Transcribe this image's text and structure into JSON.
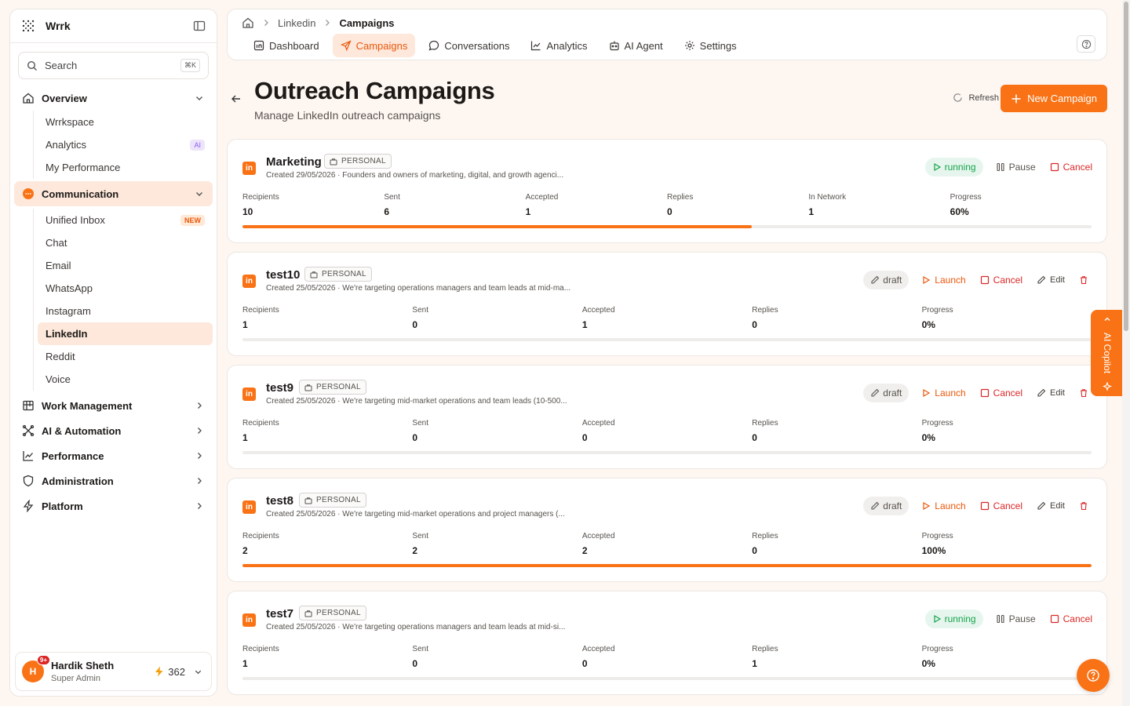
{
  "sidebar": {
    "brand": "Wrrk",
    "search_placeholder": "Search",
    "search_shortcut": "⌘K",
    "overview_label": "Overview",
    "overview_items": [
      {
        "label": "Wrrkspace",
        "badge": ""
      },
      {
        "label": "Analytics",
        "badge": "AI"
      },
      {
        "label": "My Performance",
        "badge": ""
      }
    ],
    "communication_label": "Communication",
    "communication_items": [
      {
        "label": "Unified Inbox",
        "badge": "NEW"
      },
      {
        "label": "Chat",
        "badge": ""
      },
      {
        "label": "Email",
        "badge": ""
      },
      {
        "label": "WhatsApp",
        "badge": ""
      },
      {
        "label": "Instagram",
        "badge": ""
      },
      {
        "label": "LinkedIn",
        "badge": ""
      },
      {
        "label": "Reddit",
        "badge": ""
      },
      {
        "label": "Voice",
        "badge": ""
      }
    ],
    "sections": [
      {
        "label": "Work Management",
        "icon": "kanban-icon"
      },
      {
        "label": "AI & Automation",
        "icon": "automation-icon"
      },
      {
        "label": "Performance",
        "icon": "chart-line-icon"
      },
      {
        "label": "Administration",
        "icon": "shield-icon"
      },
      {
        "label": "Platform",
        "icon": "bolt-icon"
      }
    ],
    "user": {
      "initial": "H",
      "notifications": "9+",
      "name": "Hardik Sheth",
      "role": "Super Admin",
      "credits": "362"
    }
  },
  "breadcrumb": {
    "items": [
      "Linkedin",
      "Campaigns"
    ]
  },
  "tabs": [
    {
      "label": "Dashboard",
      "icon": "linkedin-square-icon"
    },
    {
      "label": "Campaigns",
      "icon": "send-icon"
    },
    {
      "label": "Conversations",
      "icon": "chat-bubble-icon"
    },
    {
      "label": "Analytics",
      "icon": "chart-line-icon"
    },
    {
      "label": "AI Agent",
      "icon": "robot-icon"
    },
    {
      "label": "Settings",
      "icon": "gear-icon"
    }
  ],
  "page": {
    "title": "Outreach Campaigns",
    "subtitle": "Manage LinkedIn outreach campaigns",
    "refresh_label": "Refresh",
    "new_campaign_label": "New Campaign"
  },
  "stat_labels": {
    "recipients": "Recipients",
    "sent": "Sent",
    "accepted": "Accepted",
    "replies": "Replies",
    "in_network": "In Network",
    "progress": "Progress"
  },
  "action_labels": {
    "pause": "Pause",
    "cancel": "Cancel",
    "launch": "Launch",
    "edit": "Edit"
  },
  "campaigns": [
    {
      "name": "Marketing",
      "tag": "PERSONAL",
      "desc": "Created 29/05/2026 · Founders and owners of marketing, digital, and growth agenci...",
      "status": "running",
      "recipients": "10",
      "sent": "6",
      "accepted": "1",
      "replies": "0",
      "in_network": "1",
      "progress": "60%",
      "progress_value": 0.6
    },
    {
      "name": "test10",
      "tag": "PERSONAL",
      "desc": "Created 25/05/2026 · We're targeting operations managers and team leads at mid-ma...",
      "status": "draft",
      "recipients": "1",
      "sent": "0",
      "accepted": "1",
      "replies": "0",
      "progress": "0%",
      "progress_value": 0
    },
    {
      "name": "test9",
      "tag": "PERSONAL",
      "desc": "Created 25/05/2026 · We're targeting mid-market operations and team leads (10-500...",
      "status": "draft",
      "recipients": "1",
      "sent": "0",
      "accepted": "0",
      "replies": "0",
      "progress": "0%",
      "progress_value": 0
    },
    {
      "name": "test8",
      "tag": "PERSONAL",
      "desc": "Created 25/05/2026 · We're targeting mid-market operations and project managers (...",
      "status": "draft",
      "recipients": "2",
      "sent": "2",
      "accepted": "2",
      "replies": "0",
      "progress": "100%",
      "progress_value": 1
    },
    {
      "name": "test7",
      "tag": "PERSONAL",
      "desc": "Created 25/05/2026 · We're targeting operations managers and team leads at mid-si...",
      "status": "running",
      "recipients": "1",
      "sent": "0",
      "accepted": "0",
      "replies": "1",
      "progress": "0%",
      "progress_value": 0
    }
  ],
  "copilot_label": "AI Copilot",
  "colors": {
    "accent": "#f97316",
    "running": "#16a34a",
    "danger": "#dc2626"
  }
}
